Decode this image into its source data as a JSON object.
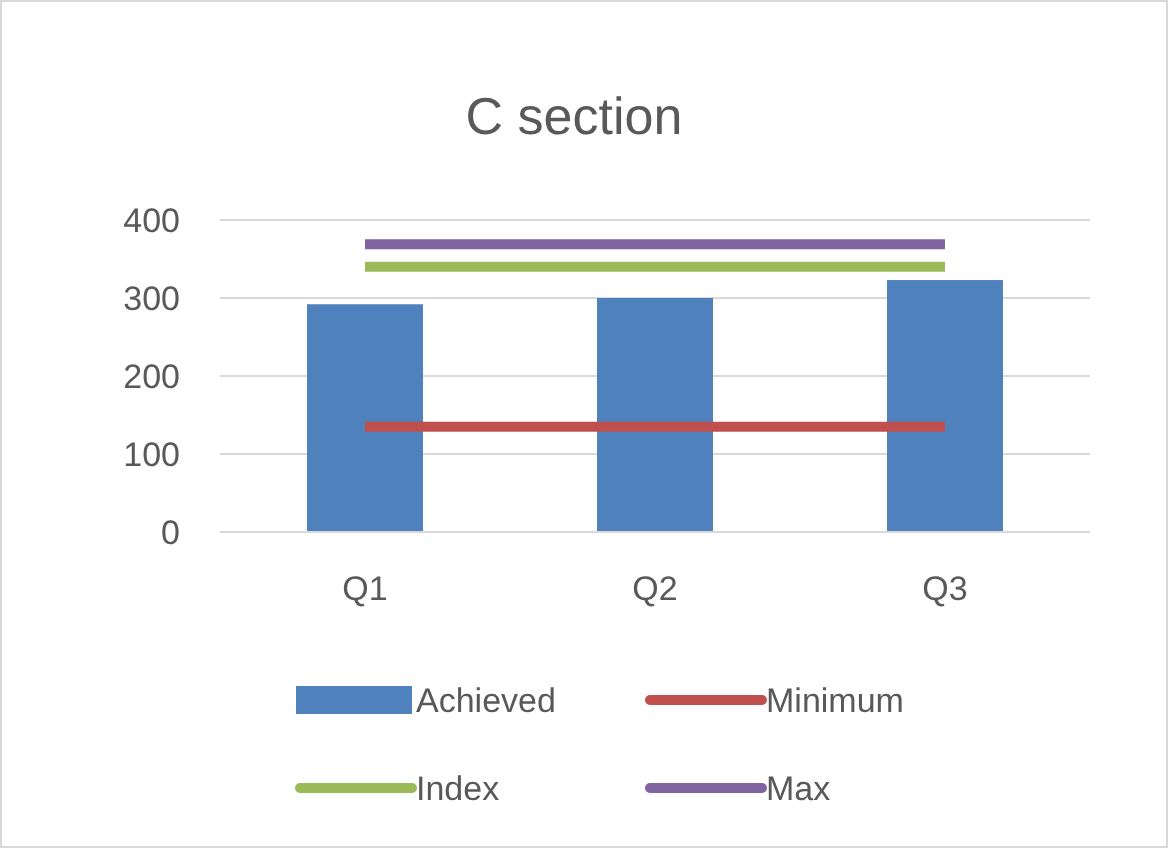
{
  "chart_data": {
    "type": "bar",
    "title": "C section",
    "categories": [
      "Q1",
      "Q2",
      "Q3"
    ],
    "series": [
      {
        "name": "Achieved",
        "color": "#4f81bd",
        "values": [
          292,
          300,
          323
        ]
      },
      {
        "name": "Minimum",
        "type": "line",
        "color": "#c0504d",
        "values": [
          135,
          135,
          135
        ]
      },
      {
        "name": "Index",
        "type": "line",
        "color": "#9bbb59",
        "values": [
          340,
          340,
          340
        ]
      },
      {
        "name": "Max",
        "type": "line",
        "color": "#8064a2",
        "values": [
          369,
          369,
          369
        ]
      }
    ],
    "ylim": [
      0,
      400
    ],
    "yticks": [
      0,
      100,
      200,
      300,
      400
    ],
    "grid": "y",
    "legend": "bottom",
    "marker": "none",
    "line_style": "solid"
  }
}
